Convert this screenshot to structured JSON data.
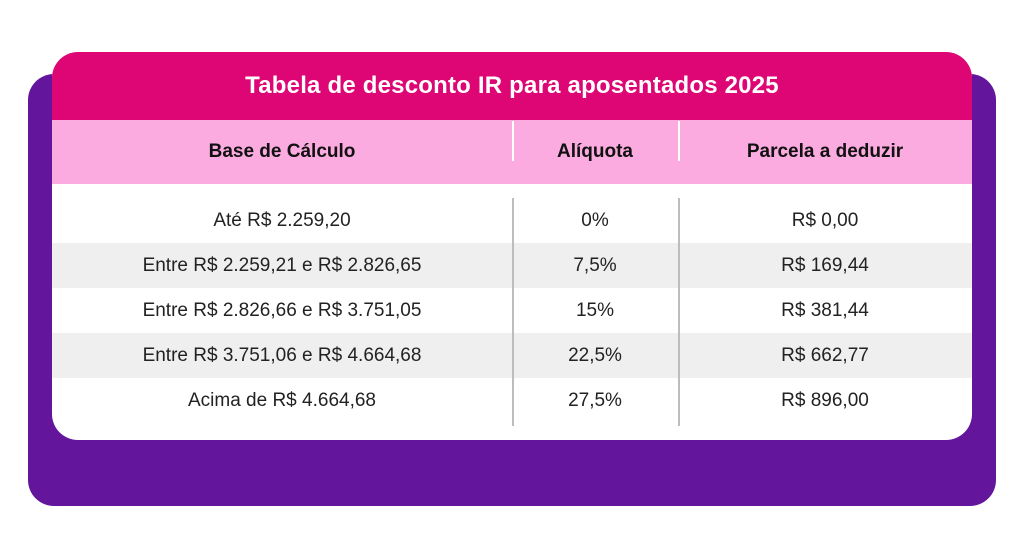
{
  "title": "Tabela de desconto IR para aposentados 2025",
  "headers": [
    "Base de Cálculo",
    "Alíquota",
    "Parcela a deduzir"
  ],
  "rows": [
    [
      "Até R$ 2.259,20",
      "0%",
      "R$ 0,00"
    ],
    [
      "Entre R$ 2.259,21 e R$ 2.826,65",
      "7,5%",
      "R$ 169,44"
    ],
    [
      "Entre R$ 2.826,66 e R$ 3.751,05",
      "15%",
      "R$ 381,44"
    ],
    [
      "Entre R$ 3.751,06 e R$ 4.664,68",
      "22,5%",
      "R$ 662,77"
    ],
    [
      "Acima de R$ 4.664,68",
      "27,5%",
      "R$ 896,00"
    ]
  ],
  "colors": {
    "background_panel": "#63169b",
    "title_bar": "#dd0674",
    "header_row": "#fbabe0",
    "alt_row": "#efefef"
  }
}
